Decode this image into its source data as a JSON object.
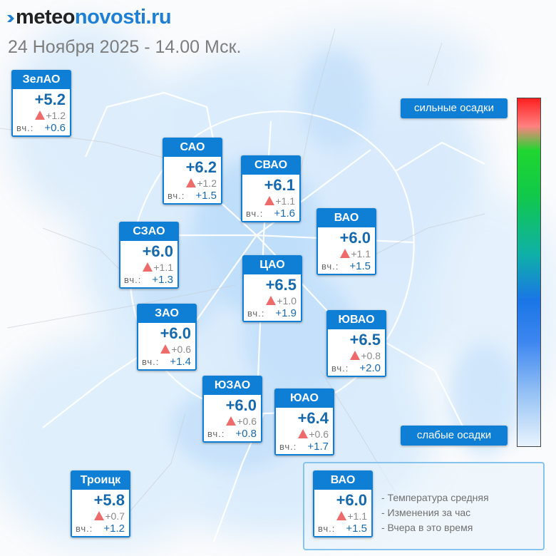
{
  "header": {
    "brand_part1": "meteo",
    "brand_part2": "novosti.ru",
    "date_line": "24 Ноября 2025 - 14.00 Мск."
  },
  "colors": {
    "card_header": "#0f7fd6",
    "temp_text": "#1769ad",
    "rise_triangle": "#ee6b6b",
    "precip_light": "#cfe6fb"
  },
  "districts": [
    {
      "name": "ЗелАО",
      "temp": "+5.2",
      "change": "+1.2",
      "yesterday_label": "вч.:",
      "yesterday": "+0.6"
    },
    {
      "name": "САО",
      "temp": "+6.2",
      "change": "+1.2",
      "yesterday_label": "вч.:",
      "yesterday": "+1.5"
    },
    {
      "name": "СВАО",
      "temp": "+6.1",
      "change": "+1.1",
      "yesterday_label": "вч.:",
      "yesterday": "+1.6"
    },
    {
      "name": "ВАО",
      "temp": "+6.0",
      "change": "+1.1",
      "yesterday_label": "вч.:",
      "yesterday": "+1.5"
    },
    {
      "name": "СЗАО",
      "temp": "+6.0",
      "change": "+1.1",
      "yesterday_label": "вч.:",
      "yesterday": "+1.3"
    },
    {
      "name": "ЦАО",
      "temp": "+6.5",
      "change": "+1.0",
      "yesterday_label": "вч.:",
      "yesterday": "+1.9"
    },
    {
      "name": "ЗАО",
      "temp": "+6.0",
      "change": "+0.6",
      "yesterday_label": "вч.:",
      "yesterday": "+1.4"
    },
    {
      "name": "ЮВАО",
      "temp": "+6.5",
      "change": "+0.8",
      "yesterday_label": "вч.:",
      "yesterday": "+2.0"
    },
    {
      "name": "ЮЗАО",
      "temp": "+6.0",
      "change": "+0.6",
      "yesterday_label": "вч.:",
      "yesterday": "+0.8"
    },
    {
      "name": "ЮАО",
      "temp": "+6.4",
      "change": "+0.6",
      "yesterday_label": "вч.:",
      "yesterday": "+1.7"
    },
    {
      "name": "Троицк",
      "temp": "+5.8",
      "change": "+0.7",
      "yesterday_label": "вч.:",
      "yesterday": "+1.2"
    }
  ],
  "precip_scale": {
    "top_label": "сильные осадки",
    "bottom_label": "слабые осадки"
  },
  "legend": {
    "example": {
      "name": "ВАО",
      "temp": "+6.0",
      "change": "+1.1",
      "yesterday_label": "вч.:",
      "yesterday": "+1.5"
    },
    "line1": "- Температура средняя",
    "line2": "- Изменения за час",
    "line3": "- Вчера в это время"
  }
}
